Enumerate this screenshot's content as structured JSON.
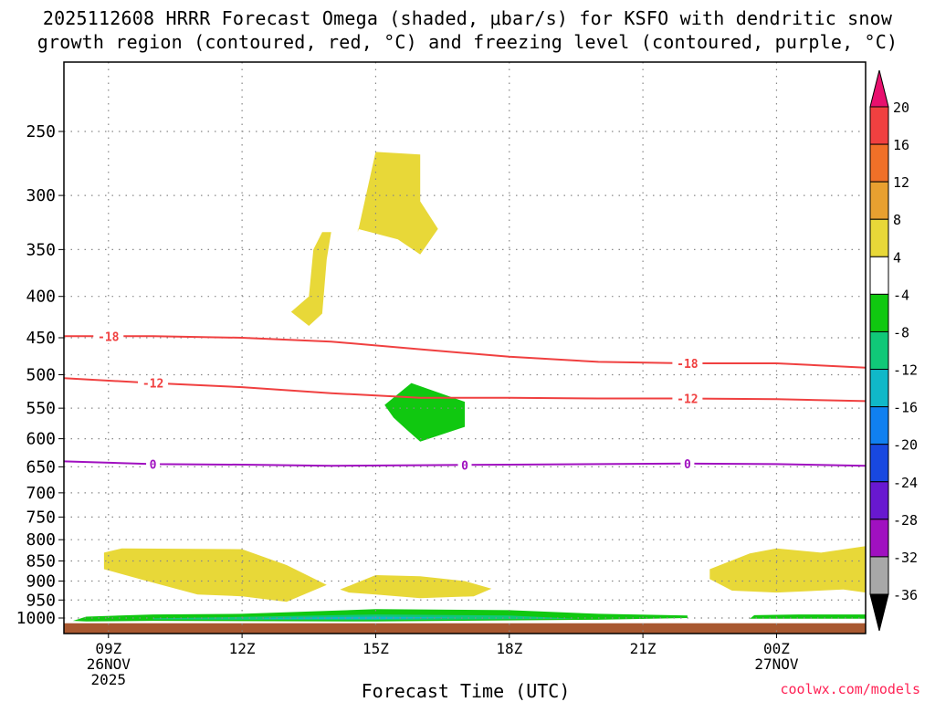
{
  "title_line1": "2025112608 HRRR Forecast Omega (shaded, μbar/s) for KSFO with dendritic snow",
  "title_line2": "growth region (contoured, red, °C) and freezing level (contoured, purple, °C)",
  "credit": "coolwx.com/models",
  "chart_data": {
    "type": "heatmap",
    "title": "2025112608 HRRR Forecast Omega (shaded, μbar/s) for KSFO with dendritic snow growth region (contoured, red, °C) and freezing level (contoured, purple, °C)",
    "xlabel": "Forecast Time (UTC)",
    "ylabel": "",
    "x_range_hours_utc": [
      8.0,
      26.0
    ],
    "x_ticks": [
      {
        "hour": 9,
        "label": "09Z",
        "sub1": "26NOV",
        "sub2": "2025"
      },
      {
        "hour": 12,
        "label": "12Z",
        "sub1": "",
        "sub2": ""
      },
      {
        "hour": 15,
        "label": "15Z",
        "sub1": "",
        "sub2": ""
      },
      {
        "hour": 18,
        "label": "18Z",
        "sub1": "",
        "sub2": ""
      },
      {
        "hour": 21,
        "label": "21Z",
        "sub1": "",
        "sub2": ""
      },
      {
        "hour": 24,
        "label": "00Z",
        "sub1": "27NOV",
        "sub2": ""
      }
    ],
    "y_scale": "log",
    "y_range_hPa": [
      1030,
      200
    ],
    "y_ticks": [
      250,
      300,
      350,
      400,
      450,
      500,
      550,
      600,
      650,
      700,
      750,
      800,
      850,
      900,
      950,
      1000
    ],
    "grid": true,
    "colorbar": {
      "unit": "μbar/s",
      "labels": [
        20,
        16,
        12,
        8,
        4,
        -4,
        -8,
        -12,
        -16,
        -20,
        -24,
        -28,
        -32,
        -36
      ],
      "colors": [
        "#e8106e",
        "#f04040",
        "#f07028",
        "#e8a030",
        "#e8d838",
        "#ffffff",
        "#10c810",
        "#10c878",
        "#10b8c8",
        "#1080f0",
        "#1848e0",
        "#6818d0",
        "#a010c0",
        "#a8a8a8",
        "#000000"
      ]
    },
    "contours": [
      {
        "name": "-18",
        "color": "#f04040",
        "label_hours": [
          9.0,
          22.0
        ],
        "points": [
          [
            8.0,
            448
          ],
          [
            10.0,
            448
          ],
          [
            12.0,
            450
          ],
          [
            14.0,
            455
          ],
          [
            16.0,
            465
          ],
          [
            18.0,
            475
          ],
          [
            20.0,
            482
          ],
          [
            22.0,
            484
          ],
          [
            24.0,
            484
          ],
          [
            26.0,
            490
          ]
        ]
      },
      {
        "name": "-12",
        "color": "#f04040",
        "label_hours": [
          10.0,
          22.0
        ],
        "points": [
          [
            8.0,
            505
          ],
          [
            10.0,
            512
          ],
          [
            12.0,
            518
          ],
          [
            14.0,
            527
          ],
          [
            16.0,
            534
          ],
          [
            18.0,
            534
          ],
          [
            20.0,
            535
          ],
          [
            22.0,
            535
          ],
          [
            24.0,
            536
          ],
          [
            26.0,
            539
          ]
        ]
      },
      {
        "name": "0",
        "color": "#a010c0",
        "label_hours": [
          10.0,
          17.0,
          22.0
        ],
        "points": [
          [
            8.0,
            640
          ],
          [
            10.0,
            645
          ],
          [
            12.0,
            646
          ],
          [
            14.0,
            648
          ],
          [
            16.0,
            647
          ],
          [
            18.0,
            646
          ],
          [
            20.0,
            645
          ],
          [
            22.0,
            644
          ],
          [
            24.0,
            645
          ],
          [
            26.0,
            648
          ]
        ]
      }
    ],
    "regions": [
      {
        "value": "4 to 8",
        "color": "#e8d838",
        "points": [
          [
            14.6,
            333
          ],
          [
            15.0,
            265
          ],
          [
            16.0,
            267
          ],
          [
            16.0,
            305
          ],
          [
            16.4,
            330
          ],
          [
            16.0,
            355
          ],
          [
            15.5,
            340
          ],
          [
            14.6,
            330
          ]
        ]
      },
      {
        "value": "4 to 8",
        "color": "#e8d838",
        "points": [
          [
            13.6,
            350
          ],
          [
            13.8,
            333
          ],
          [
            14.0,
            333
          ],
          [
            13.9,
            360
          ],
          [
            13.8,
            420
          ],
          [
            13.5,
            435
          ],
          [
            13.1,
            418
          ],
          [
            13.5,
            400
          ]
        ]
      },
      {
        "value": "-4 to -8",
        "color": "#10c810",
        "points": [
          [
            15.2,
            545
          ],
          [
            15.8,
            512
          ],
          [
            17.0,
            540
          ],
          [
            17.0,
            580
          ],
          [
            16.0,
            605
          ],
          [
            15.7,
            585
          ],
          [
            15.4,
            565
          ]
        ]
      },
      {
        "value": "4 to 8",
        "color": "#e8d838",
        "points": [
          [
            8.9,
            830
          ],
          [
            9.3,
            820
          ],
          [
            12.0,
            822
          ],
          [
            13.0,
            860
          ],
          [
            13.9,
            910
          ],
          [
            13.0,
            955
          ],
          [
            12.0,
            940
          ],
          [
            11.0,
            935
          ],
          [
            9.7,
            895
          ],
          [
            8.9,
            870
          ]
        ]
      },
      {
        "value": "4 to 8",
        "color": "#e8d838",
        "points": [
          [
            14.2,
            922
          ],
          [
            15.0,
            885
          ],
          [
            16.0,
            888
          ],
          [
            17.0,
            900
          ],
          [
            17.6,
            920
          ],
          [
            17.2,
            940
          ],
          [
            16.0,
            945
          ],
          [
            15.0,
            935
          ],
          [
            14.4,
            930
          ]
        ]
      },
      {
        "value": "4 to 8",
        "color": "#e8d838",
        "points": [
          [
            22.5,
            870
          ],
          [
            23.4,
            832
          ],
          [
            24.0,
            820
          ],
          [
            25.0,
            830
          ],
          [
            26.0,
            815
          ],
          [
            26.0,
            930
          ],
          [
            25.5,
            922
          ],
          [
            24.0,
            930
          ],
          [
            23.0,
            925
          ],
          [
            22.5,
            895
          ]
        ]
      },
      {
        "value": "-4 to -8",
        "color": "#10c810",
        "points": [
          [
            8.2,
            1008
          ],
          [
            8.5,
            996
          ],
          [
            10.0,
            990
          ],
          [
            12.0,
            988
          ],
          [
            15.0,
            975
          ],
          [
            18.0,
            978
          ],
          [
            20.0,
            988
          ],
          [
            22.0,
            993
          ],
          [
            22.0,
            1000
          ],
          [
            20.0,
            1005
          ],
          [
            15.0,
            1010
          ],
          [
            10.0,
            1008
          ],
          [
            8.5,
            1010
          ]
        ]
      },
      {
        "value": "-8 to -12",
        "color": "#10c878",
        "points": [
          [
            10.0,
            1001
          ],
          [
            12.0,
            997
          ],
          [
            15.0,
            990
          ],
          [
            18.0,
            993
          ],
          [
            19.5,
            1002
          ],
          [
            15.0,
            1006
          ],
          [
            12.0,
            1005
          ],
          [
            10.0,
            1004
          ]
        ]
      },
      {
        "value": "-12 to -16",
        "color": "#10b8c8",
        "points": [
          [
            12.5,
            1000
          ],
          [
            15.0,
            996
          ],
          [
            17.0,
            999
          ],
          [
            15.0,
            1003
          ],
          [
            12.5,
            1002
          ]
        ]
      },
      {
        "value": "-4 to -8",
        "color": "#10c810",
        "points": [
          [
            23.4,
            1002
          ],
          [
            23.5,
            992
          ],
          [
            24.5,
            990
          ],
          [
            26.0,
            990
          ],
          [
            26.0,
            1002
          ],
          [
            24.5,
            1002
          ]
        ]
      }
    ],
    "ground": {
      "color": "#a85830",
      "from_hPa": 1015
    }
  }
}
